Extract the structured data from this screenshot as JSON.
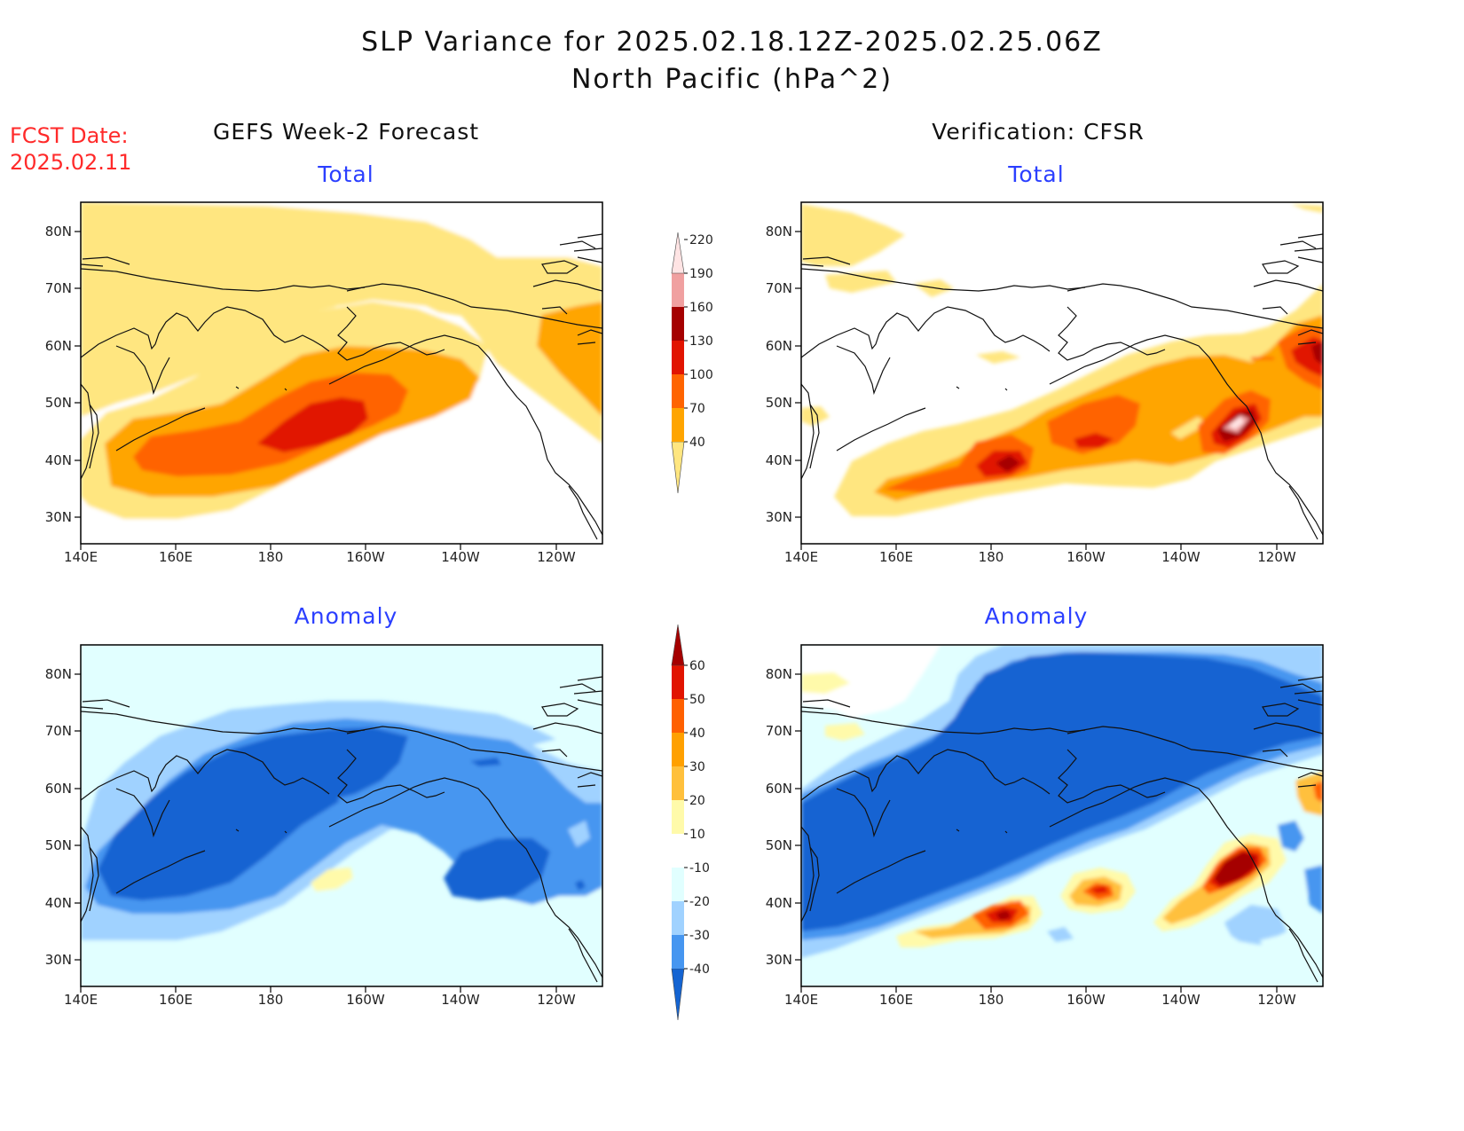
{
  "header": {
    "title_line1": "SLP Variance for 2025.02.18.12Z-2025.02.25.06Z",
    "title_line2": "North Pacific (hPa^2)"
  },
  "fcst": {
    "label": "FCST Date:",
    "date": "2025.02.11"
  },
  "columns": {
    "left_title": "GEFS Week-2 Forecast",
    "right_title": "Verification: CFSR"
  },
  "panels": {
    "top_left_label": "Total",
    "top_right_label": "Total",
    "bottom_left_label": "Anomaly",
    "bottom_right_label": "Anomaly"
  },
  "axes": {
    "lon_ticks": [
      "140E",
      "160E",
      "180",
      "160W",
      "140W",
      "120W"
    ],
    "lat_ticks": [
      "80N",
      "70N",
      "60N",
      "50N",
      "40N",
      "30N"
    ]
  },
  "colorbars": {
    "total": {
      "labels": [
        "40",
        "70",
        "100",
        "130",
        "160",
        "190",
        "220"
      ],
      "colors": [
        "#ffe680",
        "#ffa500",
        "#ff6400",
        "#e11400",
        "#a50000",
        "#f0a0a0",
        "#ffe4e4"
      ]
    },
    "anomaly": {
      "labels": [
        "-40",
        "-30",
        "-20",
        "-10",
        "10",
        "20",
        "30",
        "40",
        "50",
        "60"
      ],
      "colors": [
        "#1464d2",
        "#4696f0",
        "#a0d2ff",
        "#e1ffff",
        "#ffffff",
        "#fffaaa",
        "#ffc03c",
        "#ffa000",
        "#ff6000",
        "#e11400",
        "#a50000"
      ]
    }
  }
}
